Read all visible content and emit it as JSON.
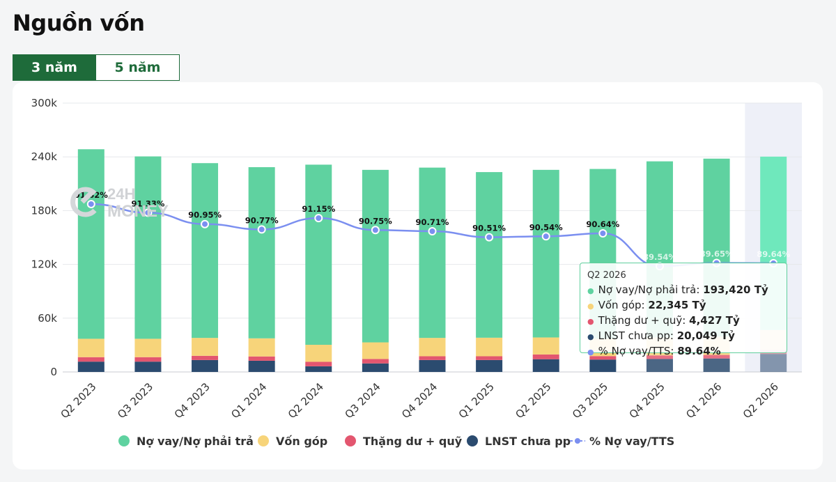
{
  "page": {
    "title": "Nguồn vốn",
    "tabs": [
      {
        "label": "3 năm",
        "active": true
      },
      {
        "label": "5 năm",
        "active": false
      }
    ]
  },
  "watermark": {
    "line1": "24H",
    "line2": "MONEY"
  },
  "colors": {
    "debt": "#5fd2a0",
    "debt_highlight": "#6fe8bc",
    "capital": "#f7d47a",
    "surplus": "#e3566f",
    "retained": "#2b4b6f",
    "ratio": "#7b8ff0",
    "accent": "#1e6b3a"
  },
  "chart_data": {
    "type": "bar",
    "stacked": true,
    "categories": [
      "Q2 2023",
      "Q3 2023",
      "Q4 2023",
      "Q1 2024",
      "Q2 2024",
      "Q3 2024",
      "Q4 2024",
      "Q1 2025",
      "Q2 2025",
      "Q3 2025",
      "Q4 2025",
      "Q1 2026",
      "Q2 2026"
    ],
    "y_ticks": [
      "0",
      "60k",
      "120k",
      "180k",
      "240k",
      "300k"
    ],
    "ylim": [
      0,
      300000
    ],
    "grid": true,
    "legend_position": "bottom",
    "series": [
      {
        "name": "LNST chưa pp",
        "key": "retained",
        "values": [
          11500,
          11500,
          13300,
          12500,
          6300,
          9500,
          13300,
          13300,
          14200,
          13800,
          14500,
          15000,
          20049
        ]
      },
      {
        "name": "Thặng dư + quỹ",
        "key": "surplus",
        "values": [
          5000,
          5000,
          4700,
          4800,
          5000,
          5000,
          4200,
          4200,
          5300,
          3900,
          4000,
          4000,
          4427
        ]
      },
      {
        "name": "Vốn góp",
        "key": "capital",
        "values": [
          20500,
          20500,
          20000,
          20200,
          19000,
          18500,
          20500,
          20700,
          19000,
          19500,
          20000,
          20500,
          22345
        ]
      },
      {
        "name": "Nợ vay/Nợ phải trả",
        "key": "debt",
        "values": [
          211500,
          203500,
          195000,
          191000,
          201000,
          192500,
          190000,
          184800,
          187000,
          189300,
          196500,
          198500,
          193420
        ]
      }
    ],
    "line_series": {
      "name": "% Nợ vay/TTS",
      "ylim": [
        86,
        95
      ],
      "values": [
        91.62,
        91.33,
        90.95,
        90.77,
        91.15,
        90.75,
        90.71,
        90.51,
        90.54,
        90.64,
        89.54,
        89.65,
        89.64
      ],
      "labels": [
        "91.62%",
        "91.33%",
        "90.95%",
        "90.77%",
        "91.15%",
        "90.75%",
        "90.71%",
        "90.51%",
        "90.54%",
        "90.64%",
        "89.54%",
        "89.65%",
        "89.64%"
      ]
    },
    "highlight_index": 12,
    "tooltip": {
      "title": "Q2 2026",
      "rows": [
        {
          "label": "Nợ vay/Nợ phải trả:",
          "value": "193,420 Tỷ",
          "key": "debt"
        },
        {
          "label": "Vốn góp:",
          "value": "22,345 Tỷ",
          "key": "capital"
        },
        {
          "label": "Thặng dư + quỹ:",
          "value": "4,427 Tỷ",
          "key": "surplus"
        },
        {
          "label": "LNST chưa pp:",
          "value": "20,049 Tỷ",
          "key": "retained"
        },
        {
          "label": "% Nợ vay/TTS:",
          "value": "89.64%",
          "key": "ratio"
        }
      ]
    },
    "legend": [
      {
        "label": "Nợ vay/Nợ phải trả",
        "key": "debt",
        "marker": "circle"
      },
      {
        "label": "Vốn góp",
        "key": "capital",
        "marker": "circle"
      },
      {
        "label": "Thặng dư + quỹ",
        "key": "surplus",
        "marker": "circle"
      },
      {
        "label": "LNST chưa pp",
        "key": "retained",
        "marker": "circle"
      },
      {
        "label": "% Nợ vay/TTS",
        "key": "ratio",
        "marker": "line"
      }
    ]
  }
}
